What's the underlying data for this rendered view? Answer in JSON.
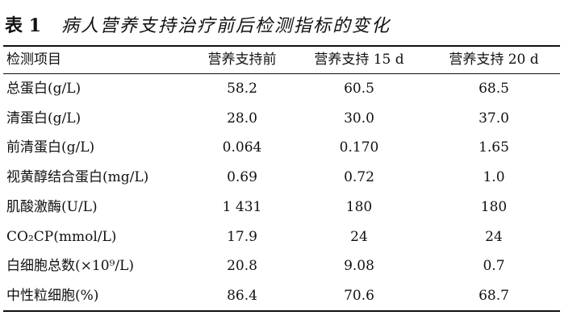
{
  "caption": {
    "label": "表 1",
    "text": "病人营养支持治疗前后检测指标的变化"
  },
  "table": {
    "header": [
      "检测项目",
      "营养支持前",
      "营养支持 15 d",
      "营养支持 20 d"
    ],
    "rows": [
      [
        "总蛋白(g/L)",
        "58.2",
        "60.5",
        "68.5"
      ],
      [
        "清蛋白(g/L)",
        "28.0",
        "30.0",
        "37.0"
      ],
      [
        "前清蛋白(g/L)",
        "0.064",
        "0.170",
        "1.65"
      ],
      [
        "视黄醇结合蛋白(mg/L)",
        "0.69",
        "0.72",
        "1.0"
      ],
      [
        "肌酸激酶(U/L)",
        "1 431",
        "180",
        "180"
      ],
      [
        "CO₂CP(mmol/L)",
        "17.9",
        "24",
        "24"
      ],
      [
        "白细胞总数(×10⁹/L)",
        "20.8",
        "9.08",
        "0.7"
      ],
      [
        "中性粒细胞(%)",
        "86.4",
        "70.6",
        "68.7"
      ]
    ]
  }
}
